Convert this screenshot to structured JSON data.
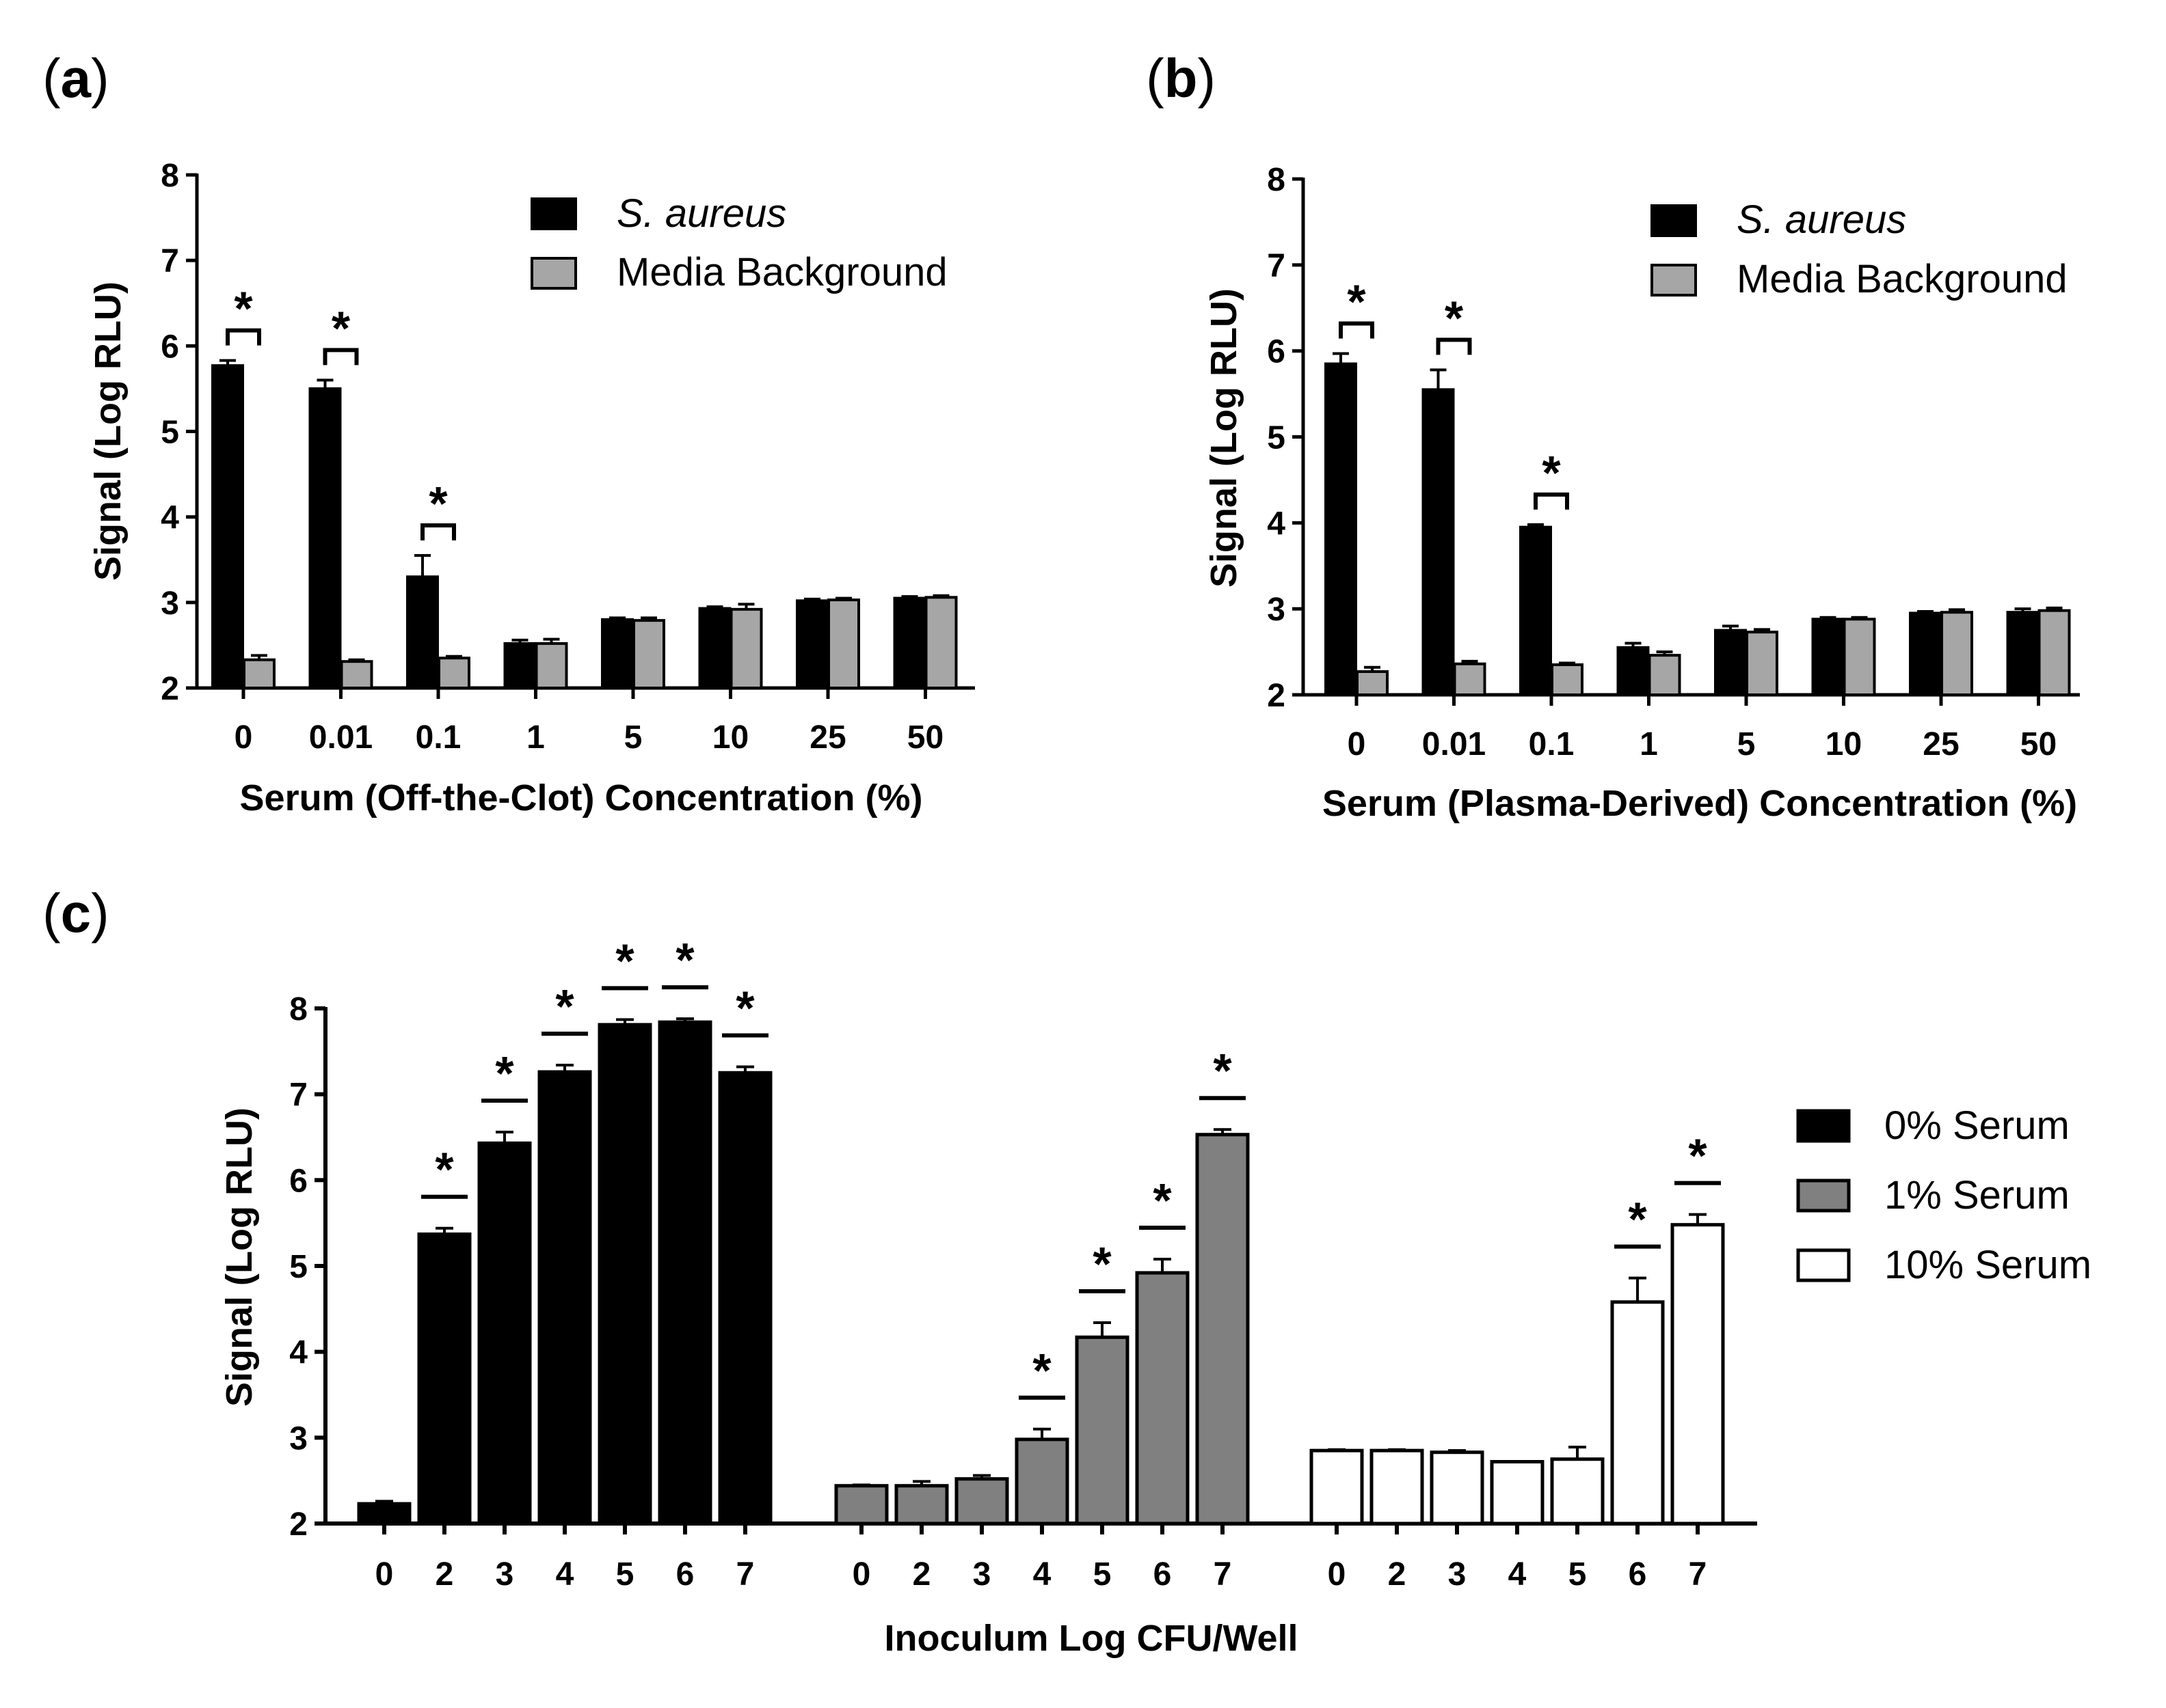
{
  "panels": {
    "a": {
      "label": "a",
      "chart_data": {
        "type": "bar",
        "categories": [
          "0",
          "0.01",
          "0.1",
          "1",
          "5",
          "10",
          "25",
          "50"
        ],
        "series": [
          {
            "name": "S. aureus",
            "color": "#000000",
            "italic": true,
            "values": [
              5.77,
              5.5,
              3.3,
              2.52,
              2.8,
              2.93,
              3.02,
              3.05
            ],
            "errors": [
              0.06,
              0.1,
              0.25,
              0.04,
              0.02,
              0.02,
              0.02,
              0.02
            ]
          },
          {
            "name": "Media Background",
            "color": "#a6a6a6",
            "italic": false,
            "values": [
              2.33,
              2.31,
              2.35,
              2.52,
              2.79,
              2.92,
              3.03,
              3.06
            ],
            "errors": [
              0.05,
              0.02,
              0.02,
              0.05,
              0.03,
              0.06,
              0.02,
              0.02
            ]
          }
        ],
        "significance": [
          0,
          1,
          2
        ],
        "title": "",
        "xlabel": "Serum (Off-the-Clot) Concentration (%)",
        "ylabel": "Signal (Log RLU)",
        "ylim": [
          2,
          8
        ],
        "yticks": [
          "2",
          "3",
          "4",
          "5",
          "6",
          "7",
          "8"
        ],
        "legend_position": "top-right",
        "grid": false
      }
    },
    "b": {
      "label": "b",
      "chart_data": {
        "type": "bar",
        "categories": [
          "0",
          "0.01",
          "0.1",
          "1",
          "5",
          "10",
          "25",
          "50"
        ],
        "series": [
          {
            "name": "S. aureus",
            "color": "#000000",
            "italic": true,
            "values": [
              5.85,
              5.55,
              3.95,
              2.55,
              2.75,
              2.88,
              2.95,
              2.96
            ],
            "errors": [
              0.12,
              0.23,
              0.03,
              0.05,
              0.05,
              0.02,
              0.02,
              0.04
            ]
          },
          {
            "name": "Media Background",
            "color": "#a6a6a6",
            "italic": false,
            "values": [
              2.27,
              2.36,
              2.35,
              2.46,
              2.73,
              2.88,
              2.96,
              2.98
            ],
            "errors": [
              0.05,
              0.03,
              0.02,
              0.04,
              0.03,
              0.02,
              0.03,
              0.03
            ]
          }
        ],
        "significance": [
          0,
          1,
          2
        ],
        "title": "",
        "xlabel": "Serum (Plasma-Derived) Concentration (%)",
        "ylabel": "Signal (Log RLU)",
        "ylim": [
          2,
          8
        ],
        "yticks": [
          "2",
          "3",
          "4",
          "5",
          "6",
          "7",
          "8"
        ],
        "legend_position": "top-right",
        "grid": false
      }
    },
    "c": {
      "label": "c",
      "chart_data": {
        "type": "bar",
        "groups": [
          {
            "name": "0% Serum",
            "color": "#000000",
            "categories": [
              "0",
              "2",
              "3",
              "4",
              "5",
              "6",
              "7"
            ],
            "values": [
              2.23,
              5.37,
              6.43,
              7.26,
              7.81,
              7.84,
              7.25
            ],
            "errors": [
              0.03,
              0.07,
              0.13,
              0.08,
              0.06,
              0.04,
              0.07
            ],
            "significance": [
              1,
              2,
              3,
              4,
              5,
              6
            ]
          },
          {
            "name": "1% Serum",
            "color": "#808080",
            "categories": [
              "0",
              "2",
              "3",
              "4",
              "5",
              "6",
              "7"
            ],
            "values": [
              2.44,
              2.44,
              2.52,
              2.98,
              4.17,
              4.92,
              6.53
            ],
            "errors": [
              0.01,
              0.05,
              0.04,
              0.12,
              0.17,
              0.16,
              0.06
            ],
            "significance": [
              3,
              4,
              5,
              6
            ]
          },
          {
            "name": "10% Serum",
            "color": "#ffffff",
            "categories": [
              "0",
              "2",
              "3",
              "4",
              "5",
              "6",
              "7"
            ],
            "values": [
              2.85,
              2.85,
              2.83,
              2.72,
              2.75,
              4.58,
              5.48
            ],
            "errors": [
              0.01,
              0.01,
              0.02,
              0.0,
              0.14,
              0.28,
              0.12
            ],
            "significance": [
              5,
              6
            ]
          }
        ],
        "title": "",
        "xlabel": "Inoculum Log CFU/Well",
        "ylabel": "Signal (Log RLU)",
        "ylim": [
          2,
          8
        ],
        "yticks": [
          "2",
          "3",
          "4",
          "5",
          "6",
          "7",
          "8"
        ],
        "legend_position": "right",
        "grid": false
      }
    }
  },
  "significance_marker": "*"
}
